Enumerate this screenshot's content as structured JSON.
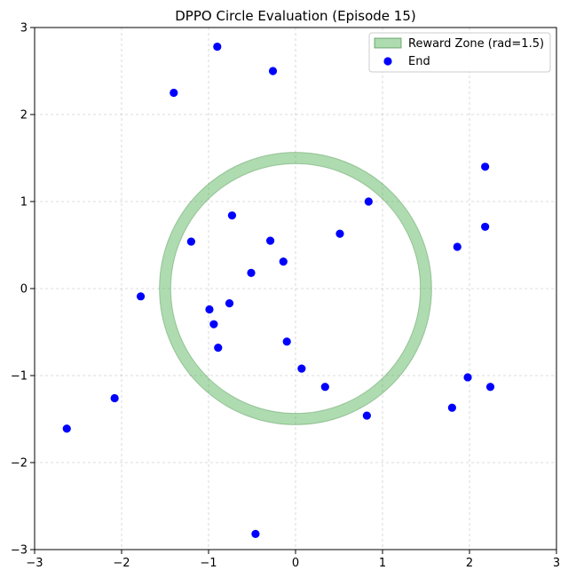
{
  "chart_data": {
    "type": "scatter",
    "title": "DPPO Circle Evaluation (Episode 15)",
    "xlabel": "",
    "ylabel": "",
    "xlim": [
      -3,
      3
    ],
    "ylim": [
      -3,
      3
    ],
    "xticks": [
      -3,
      -2,
      -1,
      0,
      1,
      2,
      3
    ],
    "yticks": [
      -3,
      -2,
      -1,
      0,
      1,
      2,
      3
    ],
    "xtick_labels": [
      "−3",
      "−2",
      "−1",
      "0",
      "1",
      "2",
      "3"
    ],
    "ytick_labels": [
      "−3",
      "−2",
      "−1",
      "0",
      "1",
      "2",
      "3"
    ],
    "grid": true,
    "legend": {
      "placement": "top-right",
      "entries": [
        {
          "label": "Reward Zone (rad=1.5)",
          "type": "patch",
          "color": "#4caf50"
        },
        {
          "label": "End",
          "type": "point",
          "color": "#0000ff"
        }
      ]
    },
    "reward_zone": {
      "center": [
        0,
        0
      ],
      "radius": 1.5,
      "band": 0.13,
      "fill": "#4caf50",
      "edge": "#2e7d32",
      "alpha": 0.45
    },
    "series": [
      {
        "name": "End",
        "color": "#0000ff",
        "points": [
          [
            -0.9,
            2.78
          ],
          [
            -0.26,
            2.5
          ],
          [
            -1.4,
            2.25
          ],
          [
            2.18,
            1.4
          ],
          [
            0.84,
            1.0
          ],
          [
            -0.73,
            0.84
          ],
          [
            2.18,
            0.71
          ],
          [
            0.51,
            0.63
          ],
          [
            -1.2,
            0.54
          ],
          [
            -0.29,
            0.55
          ],
          [
            1.86,
            0.48
          ],
          [
            -0.14,
            0.31
          ],
          [
            -0.51,
            0.18
          ],
          [
            -1.78,
            -0.09
          ],
          [
            -0.76,
            -0.17
          ],
          [
            -0.99,
            -0.24
          ],
          [
            -0.94,
            -0.41
          ],
          [
            -0.89,
            -0.68
          ],
          [
            -0.1,
            -0.61
          ],
          [
            0.07,
            -0.92
          ],
          [
            0.34,
            -1.13
          ],
          [
            1.98,
            -1.02
          ],
          [
            2.24,
            -1.13
          ],
          [
            -2.08,
            -1.26
          ],
          [
            1.8,
            -1.37
          ],
          [
            0.82,
            -1.46
          ],
          [
            -2.63,
            -1.61
          ],
          [
            -0.46,
            -2.82
          ]
        ]
      }
    ]
  }
}
